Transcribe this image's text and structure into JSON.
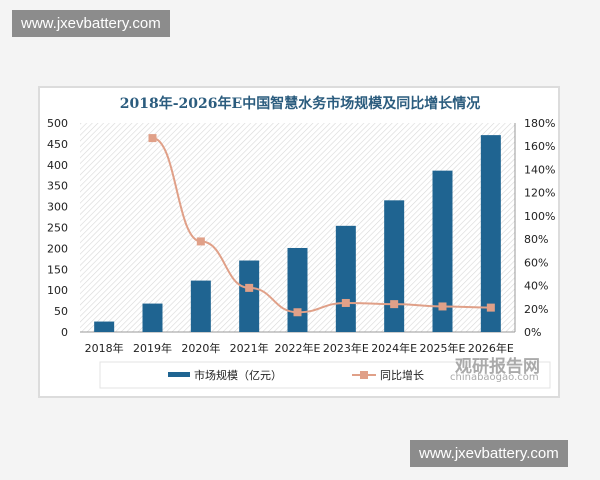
{
  "watermark_top": "www.jxevbattery.com",
  "watermark_bottom": "www.jxevbattery.com",
  "logo": {
    "name": "观研报告网",
    "url_text": "chinabaogao.com"
  },
  "chart_data": {
    "type": "bar+line",
    "title": "2018年-2026年E中国智慧水务市场规模及同比增长情况",
    "categories": [
      "2018年",
      "2019年",
      "2020年",
      "2021年",
      "2022年E",
      "2023年E",
      "2024年E",
      "2025年E",
      "2026年E"
    ],
    "series": [
      {
        "name": "市场规模（亿元）",
        "type": "bar",
        "axis": "left",
        "color": "#1f6491",
        "values": [
          25,
          68,
          123,
          171,
          201,
          254,
          315,
          386,
          471
        ]
      },
      {
        "name": "同比增长",
        "type": "line",
        "axis": "right",
        "color": "#e0a088",
        "values": [
          null,
          167,
          78,
          38,
          17,
          25,
          24,
          22,
          21
        ]
      }
    ],
    "y_left": {
      "range": [
        0,
        500
      ],
      "ticks": [
        0,
        50,
        100,
        150,
        200,
        250,
        300,
        350,
        400,
        450,
        500
      ]
    },
    "y_right": {
      "range": [
        0,
        180
      ],
      "ticks": [
        "0%",
        "20%",
        "40%",
        "60%",
        "80%",
        "100%",
        "120%",
        "140%",
        "160%",
        "180%"
      ]
    },
    "legend_placement": "bottom",
    "grid": false
  }
}
